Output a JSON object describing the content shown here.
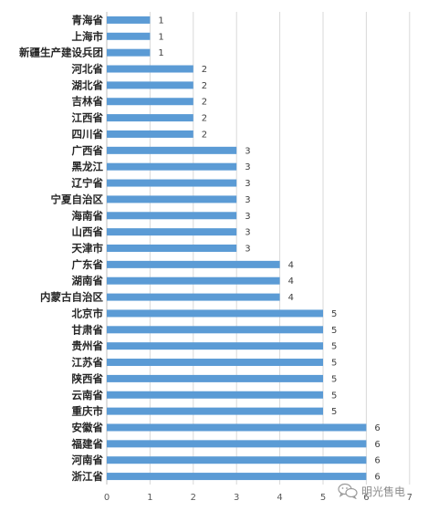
{
  "chart_data": {
    "type": "bar",
    "orientation": "horizontal",
    "title": "",
    "xlabel": "",
    "ylabel": "",
    "xlim": [
      0,
      7
    ],
    "x_ticks": [
      0,
      1,
      2,
      3,
      4,
      5,
      6,
      7
    ],
    "grid": true,
    "legend": "none",
    "bar_color": "#5B9BD5",
    "categories": [
      "青海省",
      "上海市",
      "新疆生产建设兵团",
      "河北省",
      "湖北省",
      "吉林省",
      "江西省",
      "四川省",
      "广西省",
      "黑龙江",
      "辽宁省",
      "宁夏自治区",
      "海南省",
      "山西省",
      "天津市",
      "广东省",
      "湖南省",
      "内蒙古自治区",
      "北京市",
      "甘肃省",
      "贵州省",
      "江苏省",
      "陕西省",
      "云南省",
      "重庆市",
      "安徽省",
      "福建省",
      "河南省",
      "浙江省"
    ],
    "values": [
      1,
      1,
      1,
      2,
      2,
      2,
      2,
      2,
      3,
      3,
      3,
      3,
      3,
      3,
      3,
      4,
      4,
      4,
      5,
      5,
      5,
      5,
      5,
      5,
      5,
      6,
      6,
      6,
      6
    ]
  },
  "watermark": {
    "text": "明光售电",
    "icon": "wechat-icon"
  }
}
